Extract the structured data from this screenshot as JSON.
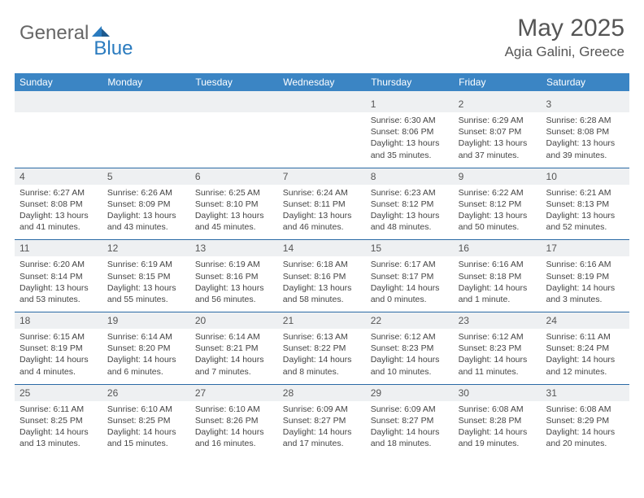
{
  "brand": {
    "general": "General",
    "blue": "Blue"
  },
  "title": {
    "month": "May 2025",
    "location": "Agia Galini, Greece"
  },
  "colors": {
    "header_bg": "#3b85c4",
    "header_text": "#ffffff",
    "daynum_bg": "#eef0f2",
    "week_sep": "#2a6aa5",
    "body_text": "#444444",
    "logo_blue": "#2a7bbf"
  },
  "day_headers": [
    "Sunday",
    "Monday",
    "Tuesday",
    "Wednesday",
    "Thursday",
    "Friday",
    "Saturday"
  ],
  "weeks": [
    {
      "nums": [
        "",
        "",
        "",
        "",
        "1",
        "2",
        "3"
      ],
      "cells": [
        [],
        [],
        [],
        [],
        [
          "Sunrise: 6:30 AM",
          "Sunset: 8:06 PM",
          "Daylight: 13 hours",
          "and 35 minutes."
        ],
        [
          "Sunrise: 6:29 AM",
          "Sunset: 8:07 PM",
          "Daylight: 13 hours",
          "and 37 minutes."
        ],
        [
          "Sunrise: 6:28 AM",
          "Sunset: 8:08 PM",
          "Daylight: 13 hours",
          "and 39 minutes."
        ]
      ]
    },
    {
      "nums": [
        "4",
        "5",
        "6",
        "7",
        "8",
        "9",
        "10"
      ],
      "cells": [
        [
          "Sunrise: 6:27 AM",
          "Sunset: 8:08 PM",
          "Daylight: 13 hours",
          "and 41 minutes."
        ],
        [
          "Sunrise: 6:26 AM",
          "Sunset: 8:09 PM",
          "Daylight: 13 hours",
          "and 43 minutes."
        ],
        [
          "Sunrise: 6:25 AM",
          "Sunset: 8:10 PM",
          "Daylight: 13 hours",
          "and 45 minutes."
        ],
        [
          "Sunrise: 6:24 AM",
          "Sunset: 8:11 PM",
          "Daylight: 13 hours",
          "and 46 minutes."
        ],
        [
          "Sunrise: 6:23 AM",
          "Sunset: 8:12 PM",
          "Daylight: 13 hours",
          "and 48 minutes."
        ],
        [
          "Sunrise: 6:22 AM",
          "Sunset: 8:12 PM",
          "Daylight: 13 hours",
          "and 50 minutes."
        ],
        [
          "Sunrise: 6:21 AM",
          "Sunset: 8:13 PM",
          "Daylight: 13 hours",
          "and 52 minutes."
        ]
      ]
    },
    {
      "nums": [
        "11",
        "12",
        "13",
        "14",
        "15",
        "16",
        "17"
      ],
      "cells": [
        [
          "Sunrise: 6:20 AM",
          "Sunset: 8:14 PM",
          "Daylight: 13 hours",
          "and 53 minutes."
        ],
        [
          "Sunrise: 6:19 AM",
          "Sunset: 8:15 PM",
          "Daylight: 13 hours",
          "and 55 minutes."
        ],
        [
          "Sunrise: 6:19 AM",
          "Sunset: 8:16 PM",
          "Daylight: 13 hours",
          "and 56 minutes."
        ],
        [
          "Sunrise: 6:18 AM",
          "Sunset: 8:16 PM",
          "Daylight: 13 hours",
          "and 58 minutes."
        ],
        [
          "Sunrise: 6:17 AM",
          "Sunset: 8:17 PM",
          "Daylight: 14 hours",
          "and 0 minutes."
        ],
        [
          "Sunrise: 6:16 AM",
          "Sunset: 8:18 PM",
          "Daylight: 14 hours",
          "and 1 minute."
        ],
        [
          "Sunrise: 6:16 AM",
          "Sunset: 8:19 PM",
          "Daylight: 14 hours",
          "and 3 minutes."
        ]
      ]
    },
    {
      "nums": [
        "18",
        "19",
        "20",
        "21",
        "22",
        "23",
        "24"
      ],
      "cells": [
        [
          "Sunrise: 6:15 AM",
          "Sunset: 8:19 PM",
          "Daylight: 14 hours",
          "and 4 minutes."
        ],
        [
          "Sunrise: 6:14 AM",
          "Sunset: 8:20 PM",
          "Daylight: 14 hours",
          "and 6 minutes."
        ],
        [
          "Sunrise: 6:14 AM",
          "Sunset: 8:21 PM",
          "Daylight: 14 hours",
          "and 7 minutes."
        ],
        [
          "Sunrise: 6:13 AM",
          "Sunset: 8:22 PM",
          "Daylight: 14 hours",
          "and 8 minutes."
        ],
        [
          "Sunrise: 6:12 AM",
          "Sunset: 8:23 PM",
          "Daylight: 14 hours",
          "and 10 minutes."
        ],
        [
          "Sunrise: 6:12 AM",
          "Sunset: 8:23 PM",
          "Daylight: 14 hours",
          "and 11 minutes."
        ],
        [
          "Sunrise: 6:11 AM",
          "Sunset: 8:24 PM",
          "Daylight: 14 hours",
          "and 12 minutes."
        ]
      ]
    },
    {
      "nums": [
        "25",
        "26",
        "27",
        "28",
        "29",
        "30",
        "31"
      ],
      "cells": [
        [
          "Sunrise: 6:11 AM",
          "Sunset: 8:25 PM",
          "Daylight: 14 hours",
          "and 13 minutes."
        ],
        [
          "Sunrise: 6:10 AM",
          "Sunset: 8:25 PM",
          "Daylight: 14 hours",
          "and 15 minutes."
        ],
        [
          "Sunrise: 6:10 AM",
          "Sunset: 8:26 PM",
          "Daylight: 14 hours",
          "and 16 minutes."
        ],
        [
          "Sunrise: 6:09 AM",
          "Sunset: 8:27 PM",
          "Daylight: 14 hours",
          "and 17 minutes."
        ],
        [
          "Sunrise: 6:09 AM",
          "Sunset: 8:27 PM",
          "Daylight: 14 hours",
          "and 18 minutes."
        ],
        [
          "Sunrise: 6:08 AM",
          "Sunset: 8:28 PM",
          "Daylight: 14 hours",
          "and 19 minutes."
        ],
        [
          "Sunrise: 6:08 AM",
          "Sunset: 8:29 PM",
          "Daylight: 14 hours",
          "and 20 minutes."
        ]
      ]
    }
  ]
}
